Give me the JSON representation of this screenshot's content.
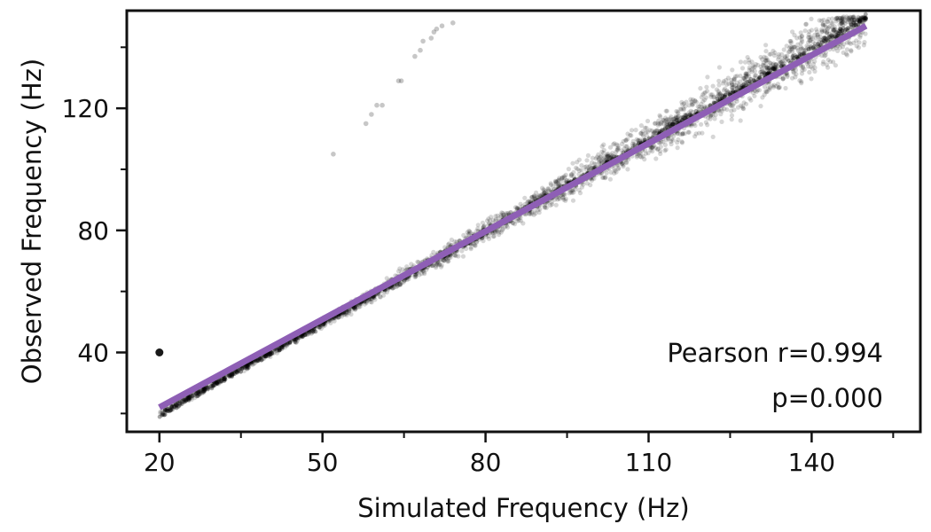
{
  "chart_data": {
    "type": "scatter",
    "title": "",
    "xlabel": "Simulated Frequency (Hz)",
    "ylabel": "Observed Frequency (Hz)",
    "xlim": [
      14,
      160
    ],
    "ylim": [
      14,
      152
    ],
    "x_ticks": [
      20,
      50,
      80,
      110,
      140
    ],
    "x_tick_labels": [
      "20",
      "50",
      "80",
      "110",
      "140"
    ],
    "x_minor_ticks": [
      35,
      65,
      95,
      125,
      155
    ],
    "y_ticks": [
      40,
      80,
      120
    ],
    "y_tick_labels": [
      "40",
      "80",
      "120"
    ],
    "y_minor_ticks": [
      20,
      60,
      100,
      140
    ],
    "grid": false,
    "legend": "none",
    "scatter_color": "#000000",
    "fit_color": "#8e5fb5",
    "series": [
      {
        "kind": "scatter",
        "note": "dense band of simulated vs observed points close to y = x",
        "band_x_range": [
          20,
          150
        ],
        "outliers": [
          [
            20,
            40
          ],
          [
            52,
            105
          ],
          [
            58,
            115
          ],
          [
            59,
            118
          ],
          [
            60,
            121
          ],
          [
            61,
            121
          ],
          [
            64,
            129
          ],
          [
            64.5,
            129
          ],
          [
            67,
            137
          ],
          [
            68,
            139
          ],
          [
            68.5,
            142
          ],
          [
            70,
            143
          ],
          [
            70.5,
            145
          ],
          [
            71,
            146
          ],
          [
            72,
            147
          ],
          [
            74,
            148
          ]
        ]
      },
      {
        "kind": "fit_line",
        "points": [
          [
            20,
            22
          ],
          [
            150,
            147
          ]
        ]
      }
    ],
    "annotations": {
      "pearson": "Pearson r=0.994",
      "pvalue": "p=0.000"
    }
  }
}
